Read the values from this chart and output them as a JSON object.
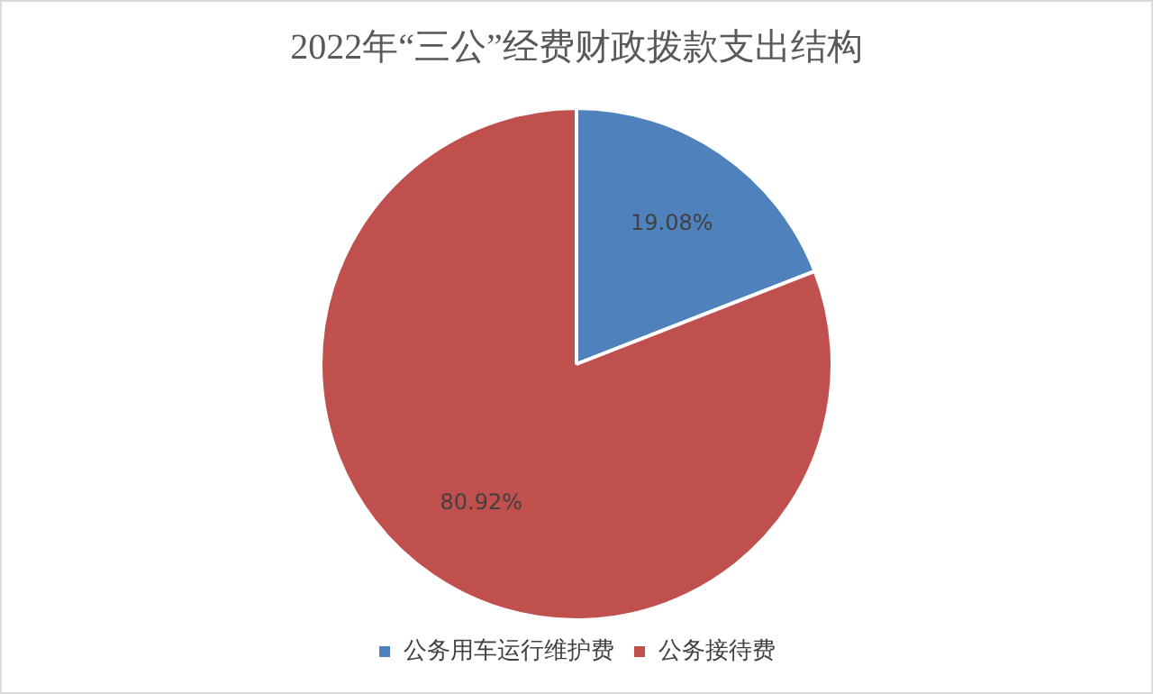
{
  "chart_data": {
    "type": "pie",
    "title": "2022年“三公”经费财政拨款支出结构",
    "categories": [
      "公务用车运行维护费",
      "公务接待费"
    ],
    "values": [
      19.08,
      80.92
    ],
    "colors": [
      "#4f81bd",
      "#c0504d"
    ],
    "value_labels": [
      "19.08%",
      "80.92%"
    ],
    "legend": "bottom"
  }
}
